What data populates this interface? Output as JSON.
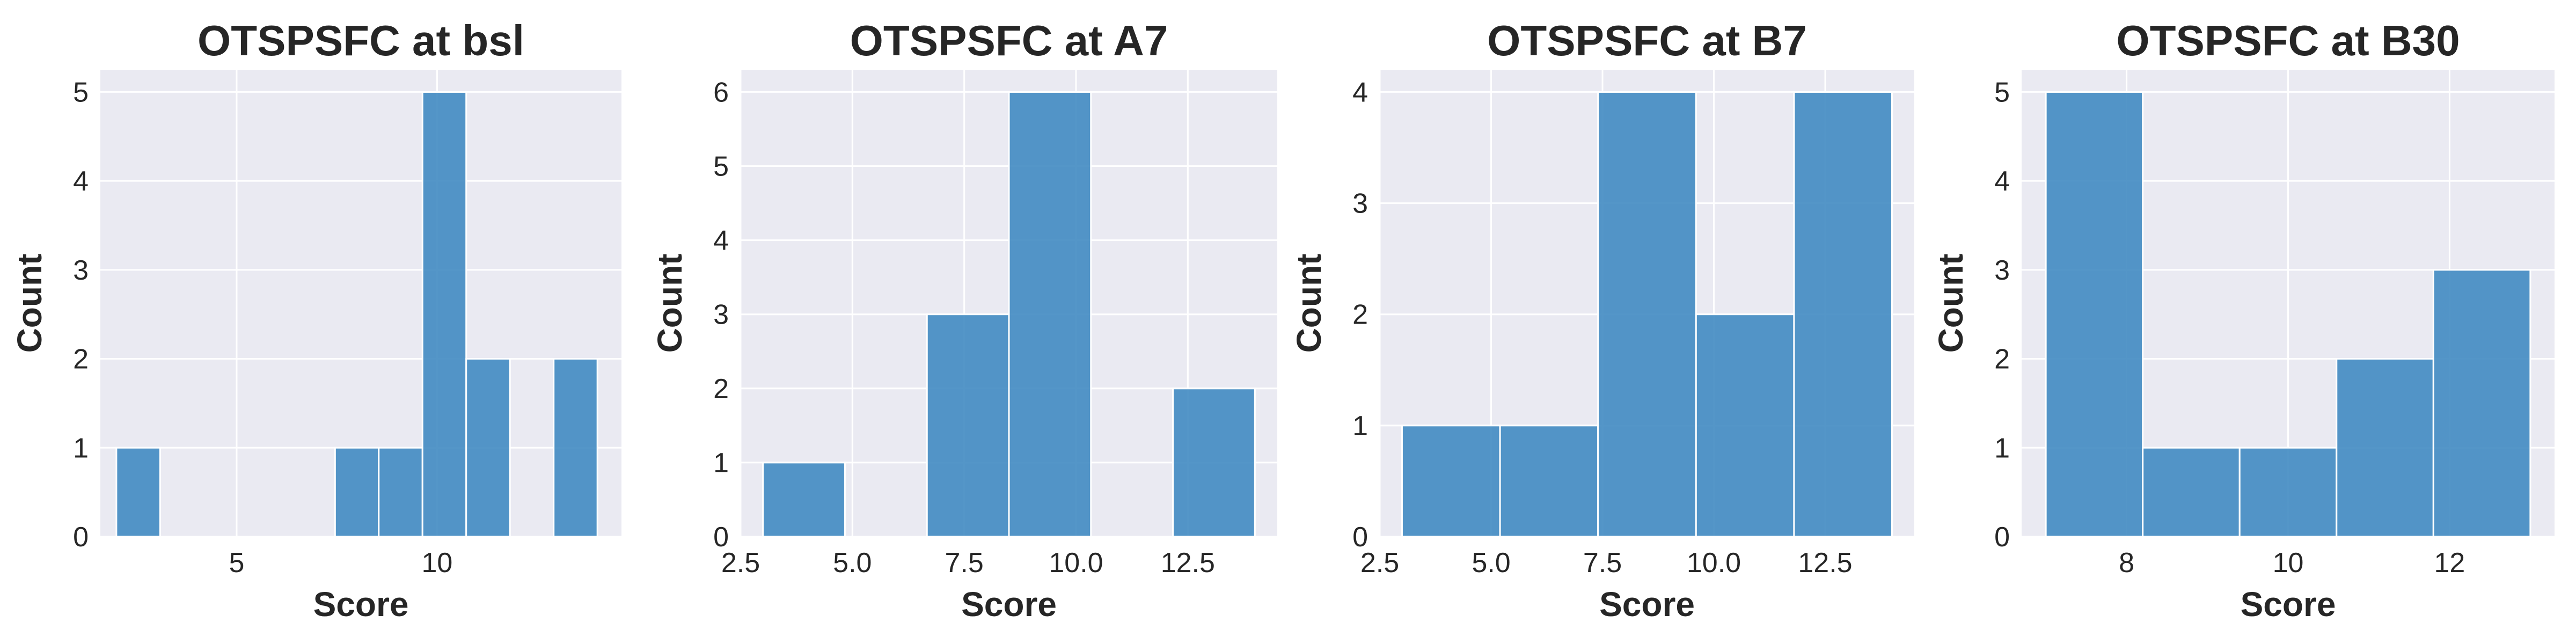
{
  "chart_data": [
    {
      "type": "bar",
      "title": "OTSPSFC at bsl",
      "xlabel": "Score",
      "ylabel": "Count",
      "xlim": [
        1.6,
        14.6
      ],
      "ylim": [
        0,
        5.25
      ],
      "xticks": [
        5,
        10
      ],
      "xticklabels": [
        "5",
        "10"
      ],
      "yticks": [
        0,
        1,
        2,
        3,
        4,
        5
      ],
      "bins": [
        {
          "x0": 2.0,
          "x1": 3.091,
          "count": 1
        },
        {
          "x0": 3.091,
          "x1": 4.182,
          "count": 0
        },
        {
          "x0": 4.182,
          "x1": 5.273,
          "count": 0
        },
        {
          "x0": 5.273,
          "x1": 6.364,
          "count": 0
        },
        {
          "x0": 6.364,
          "x1": 7.455,
          "count": 0
        },
        {
          "x0": 7.455,
          "x1": 8.545,
          "count": 1
        },
        {
          "x0": 8.545,
          "x1": 9.636,
          "count": 1
        },
        {
          "x0": 9.636,
          "x1": 10.727,
          "count": 5
        },
        {
          "x0": 10.727,
          "x1": 11.818,
          "count": 2
        },
        {
          "x0": 11.818,
          "x1": 12.909,
          "count": 0
        },
        {
          "x0": 12.909,
          "x1": 14.0,
          "count": 2
        }
      ]
    },
    {
      "type": "bar",
      "title": "OTSPSFC at A7",
      "xlabel": "Score",
      "ylabel": "Count",
      "xlim": [
        2.5,
        14.5
      ],
      "ylim": [
        0,
        6.3
      ],
      "xticks": [
        2.5,
        5.0,
        7.5,
        10.0,
        12.5
      ],
      "xticklabels": [
        "2.5",
        "5.0",
        "7.5",
        "10.0",
        "12.5"
      ],
      "yticks": [
        0,
        1,
        2,
        3,
        4,
        5,
        6
      ],
      "bins": [
        {
          "x0": 3.0,
          "x1": 4.833,
          "count": 1
        },
        {
          "x0": 4.833,
          "x1": 6.667,
          "count": 0
        },
        {
          "x0": 6.667,
          "x1": 8.5,
          "count": 3
        },
        {
          "x0": 8.5,
          "x1": 10.333,
          "count": 6
        },
        {
          "x0": 10.333,
          "x1": 12.167,
          "count": 0
        },
        {
          "x0": 12.167,
          "x1": 14.0,
          "count": 2
        }
      ]
    },
    {
      "type": "bar",
      "title": "OTSPSFC at B7",
      "xlabel": "Score",
      "ylabel": "Count",
      "xlim": [
        2.5,
        14.5
      ],
      "ylim": [
        0,
        4.2
      ],
      "xticks": [
        2.5,
        5.0,
        7.5,
        10.0,
        12.5
      ],
      "xticklabels": [
        "2.5",
        "5.0",
        "7.5",
        "10.0",
        "12.5"
      ],
      "yticks": [
        0,
        1,
        2,
        3,
        4
      ],
      "bins": [
        {
          "x0": 3.0,
          "x1": 5.2,
          "count": 1
        },
        {
          "x0": 5.2,
          "x1": 7.4,
          "count": 1
        },
        {
          "x0": 7.4,
          "x1": 9.6,
          "count": 4
        },
        {
          "x0": 9.6,
          "x1": 11.8,
          "count": 2
        },
        {
          "x0": 11.8,
          "x1": 14.0,
          "count": 4
        }
      ]
    },
    {
      "type": "bar",
      "title": "OTSPSFC at B30",
      "xlabel": "Score",
      "ylabel": "Count",
      "xlim": [
        6.7,
        13.3
      ],
      "ylim": [
        0,
        5.25
      ],
      "xticks": [
        8,
        10,
        12
      ],
      "xticklabels": [
        "8",
        "10",
        "12"
      ],
      "yticks": [
        0,
        1,
        2,
        3,
        4,
        5
      ],
      "bins": [
        {
          "x0": 7.0,
          "x1": 8.2,
          "count": 5
        },
        {
          "x0": 8.2,
          "x1": 9.4,
          "count": 1
        },
        {
          "x0": 9.4,
          "x1": 10.6,
          "count": 1
        },
        {
          "x0": 10.6,
          "x1": 11.8,
          "count": 2
        },
        {
          "x0": 11.8,
          "x1": 13.0,
          "count": 3
        }
      ]
    }
  ],
  "style": {
    "bar_fill": "#3c88c0",
    "bar_edge": "#ffffff",
    "axes_bg": "#eaeaf2",
    "grid": "#ffffff",
    "text": "#262626"
  }
}
